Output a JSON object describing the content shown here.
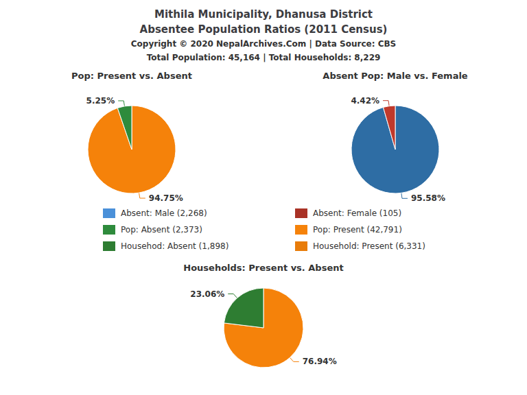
{
  "title": "Mithila Municipality, Dhanusa District",
  "subtitle": "Absentee Population Ratios (2011 Census)",
  "annotations": [
    {
      "text": "Copyright © 2020 NepalArchives.Com | Data Source: CBS"
    },
    {
      "text": "Total Population: 45,164 | Total Households: 8,229"
    },
    {
      "text": "Absent: Male (2,268)",
      "marker": "square",
      "color": "#4a90d9"
    },
    {
      "text": "Absent: Female (105)",
      "marker": "square",
      "color": "#a93226"
    },
    {
      "text": "Pop: Absent (2,373)",
      "marker": "square",
      "color": "#2e8b3c"
    },
    {
      "text": "Pop: Present (42,791)",
      "marker": "square",
      "color": "#f5820a"
    },
    {
      "text": "Househod: Absent (1,898)",
      "marker": "square",
      "color": "#2e7d32"
    },
    {
      "text": "Household: Present (6,331)",
      "marker": "square",
      "color": "#e87c0a"
    }
  ],
  "chart_data": [
    {
      "type": "pie",
      "title": "Pop: Present vs. Absent",
      "values": [
        94.75,
        5.25
      ],
      "value_labels": [
        "94.75%",
        "5.25%"
      ],
      "colors": [
        "#f5820a",
        "#2e8b3c"
      ],
      "data_labels": true
    },
    {
      "type": "pie",
      "title": "Absent Pop: Male vs. Female",
      "values": [
        95.58,
        4.42
      ],
      "value_labels": [
        "95.58%",
        "4.42%"
      ],
      "colors": [
        "#2e6da4",
        "#c0392b"
      ],
      "data_labels": true
    },
    {
      "type": "pie",
      "title": "Households: Present vs. Absent",
      "values": [
        76.94,
        23.06
      ],
      "value_labels": [
        "76.94%",
        "23.06%"
      ],
      "colors": [
        "#f5820a",
        "#2e7d32"
      ],
      "data_labels": true
    }
  ]
}
